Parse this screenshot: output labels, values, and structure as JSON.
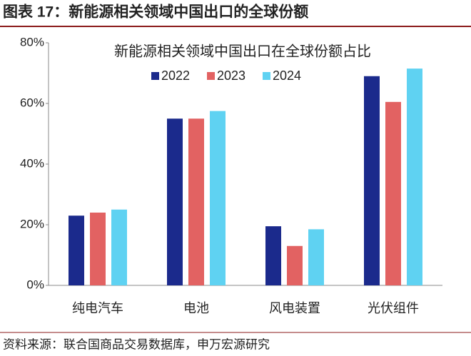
{
  "figure_title": "图表 17：新能源相关领域中国出口的全球份额",
  "source": "资料来源：联合国商品交易数据库，申万宏源研究",
  "chart_data": {
    "type": "bar",
    "title": "新能源相关领域中国出口在全球份额占比",
    "categories": [
      "纯电汽车",
      "电池",
      "风电装置",
      "光伏组件"
    ],
    "series": [
      {
        "name": "2022",
        "color": "#1b2a8c",
        "values": [
          23,
          55,
          19.5,
          69
        ]
      },
      {
        "name": "2023",
        "color": "#e26262",
        "values": [
          24,
          55,
          13,
          60.5
        ]
      },
      {
        "name": "2024",
        "color": "#5fd2f2",
        "values": [
          25,
          57.5,
          18.5,
          71.5
        ]
      }
    ],
    "ylim": [
      0,
      80
    ],
    "yticks": [
      {
        "value": 0,
        "label": "0%"
      },
      {
        "value": 20,
        "label": "20%"
      },
      {
        "value": 40,
        "label": "40%"
      },
      {
        "value": 60,
        "label": "60%"
      },
      {
        "value": 80,
        "label": "80%"
      }
    ],
    "grid": false
  }
}
